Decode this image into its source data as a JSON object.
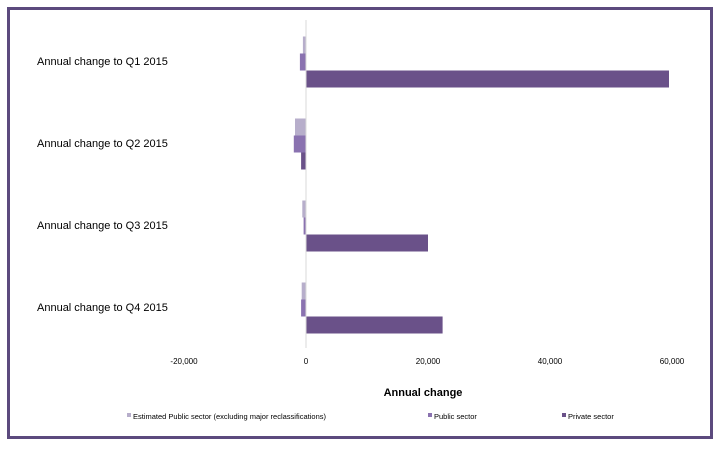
{
  "chart_data": {
    "type": "bar",
    "orientation": "horizontal",
    "categories": [
      "Annual change to Q1 2015",
      "Annual change to Q2 2015",
      "Annual change to Q3 2015",
      "Annual change to Q4 2015"
    ],
    "series": [
      {
        "name": "Estimated Public sector (excluding major reclassifications)",
        "color": "#b7aecb",
        "values": [
          -500,
          -1800,
          -600,
          -700
        ]
      },
      {
        "name": "Public sector",
        "color": "#8a72b0",
        "values": [
          -1000,
          -2000,
          -400,
          -800
        ]
      },
      {
        "name": "Private sector",
        "color": "#6a5189",
        "values": [
          59500,
          -800,
          20000,
          22400
        ]
      }
    ],
    "xlabel": "Annual change",
    "xlim": [
      -20000,
      60000
    ],
    "xticks": [
      "-20,000",
      "0",
      "20,000",
      "40,000",
      "60,000"
    ],
    "tick_values": [
      -20000,
      0,
      20000,
      40000,
      60000
    ],
    "legend_position": "bottom",
    "grid": false
  }
}
